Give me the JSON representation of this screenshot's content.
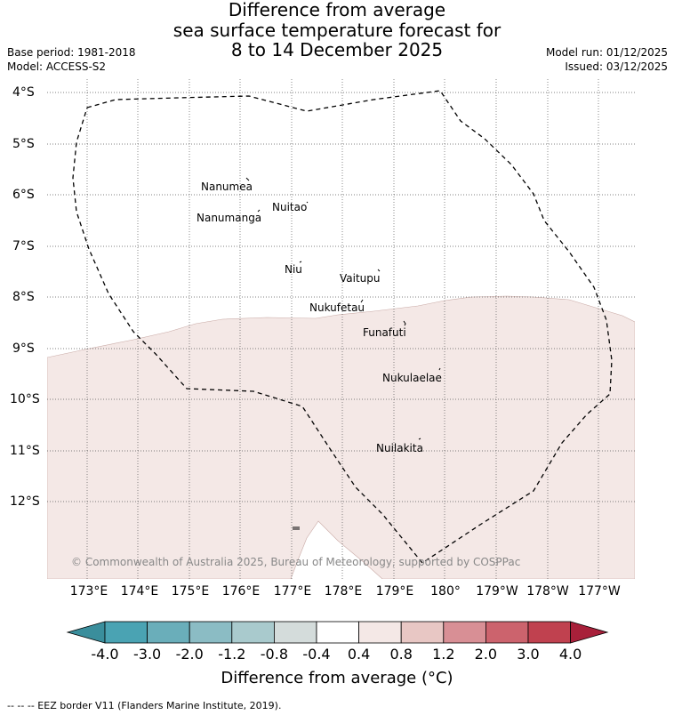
{
  "title": {
    "line1": "Difference from average",
    "line2": "sea surface temperature forecast for",
    "line3": "8 to 14 December 2025"
  },
  "meta": {
    "base_period": "Base period: 1981-2018",
    "model": "Model: ACCESS-S2",
    "model_run": "Model run: 01/12/2025",
    "issued": "Issued: 03/12/2025"
  },
  "map": {
    "lat_labels": [
      "4°S",
      "5°S",
      "6°S",
      "7°S",
      "8°S",
      "9°S",
      "10°S",
      "11°S",
      "12°S"
    ],
    "lon_labels": [
      "173°E",
      "174°E",
      "175°E",
      "176°E",
      "177°E",
      "178°E",
      "179°E",
      "180°",
      "179°W",
      "178°W",
      "177°W"
    ],
    "islands": [
      "Nanumea",
      "Nuitao",
      "Nanumanga",
      "Niu",
      "Vaitupu",
      "Nukufetau",
      "Funafuti",
      "Nukulaelae",
      "Nuilakita"
    ],
    "copyright": "© Commonwealth of Australia 2025, Bureau of Meteorology, supported by COSPPac",
    "anomaly_fill_color": "#f4e8e6"
  },
  "colorbar": {
    "ticks": [
      "-4.0",
      "-3.0",
      "-2.0",
      "-1.2",
      "-0.8",
      "-0.4",
      "0.4",
      "0.8",
      "1.2",
      "2.0",
      "3.0",
      "4.0"
    ],
    "colors": [
      "#3a8e9c",
      "#4aa3b3",
      "#6aaeba",
      "#8bbcc4",
      "#a9cacd",
      "#d4dcdb",
      "#ffffff",
      "#f4e8e6",
      "#e8c7c4",
      "#d88f95",
      "#cc636d",
      "#c0414f",
      "#a8203a"
    ],
    "title": "Difference from average (°C)"
  },
  "footer": "--  --  -- EEZ border V11 (Flanders Marine Institute, 2019)."
}
